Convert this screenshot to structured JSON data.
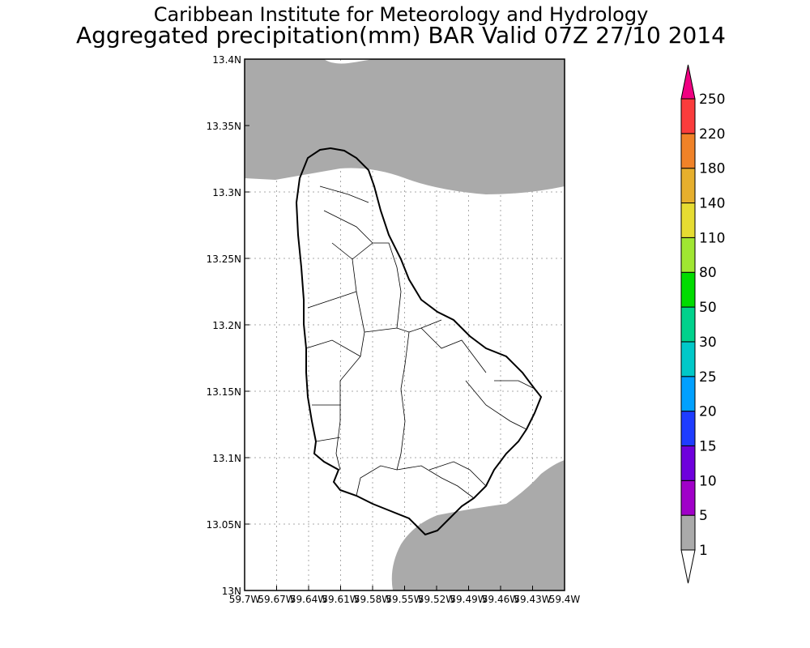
{
  "header": {
    "title": "Caribbean Institute for Meteorology and Hydrology",
    "subtitle": "Aggregated precipitation(mm) BAR Valid 07Z 27/10 2014"
  },
  "map": {
    "region": "Barbados",
    "lon_range": [
      -59.7,
      -59.4
    ],
    "lat_range": [
      13.0,
      13.4
    ],
    "x_tick_labels": [
      "59.7W",
      "59.67W",
      "59.64W",
      "59.61W",
      "59.58W",
      "59.55W",
      "59.52W",
      "59.49W",
      "59.46W",
      "59.43W",
      "59.4W"
    ],
    "y_tick_labels": [
      "13N",
      "13.05N",
      "13.1N",
      "13.15N",
      "13.2N",
      "13.25N",
      "13.3N",
      "13.35N",
      "13.4N"
    ],
    "precip_fill_color": "#aaaaaa"
  },
  "colorbar": {
    "labels": [
      "1",
      "5",
      "10",
      "15",
      "20",
      "25",
      "30",
      "50",
      "80",
      "110",
      "140",
      "180",
      "220",
      "250"
    ],
    "colors": [
      "#aaaaaa",
      "#a000c8",
      "#6e00dc",
      "#1e3cff",
      "#00a0ff",
      "#00c8c8",
      "#00d28c",
      "#00dc00",
      "#a0e632",
      "#e6dc32",
      "#e6af2d",
      "#f08228",
      "#fa3c3c"
    ],
    "under_color": "#ffffff",
    "over_color": "#f00082"
  }
}
